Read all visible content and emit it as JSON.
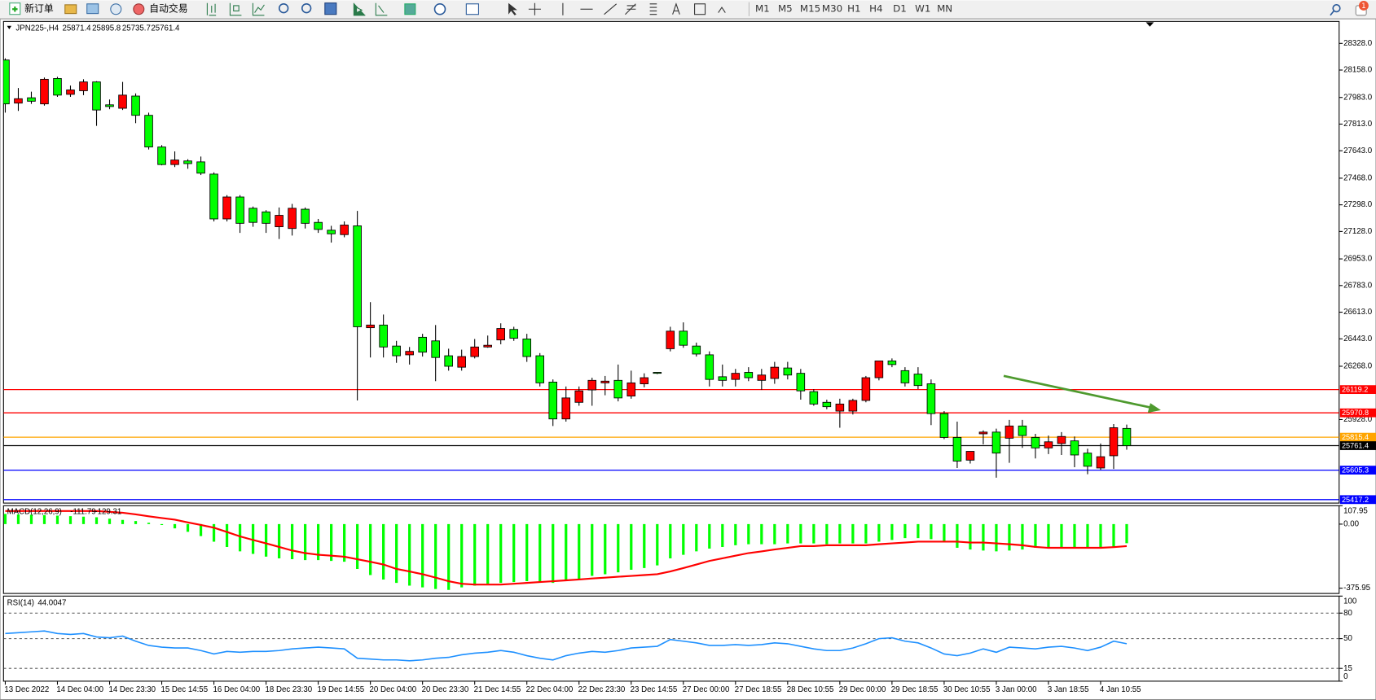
{
  "toolbar": {
    "new_order": "新订单",
    "auto_trading": "自动交易",
    "timeframes": [
      "M1",
      "M5",
      "M15",
      "M30",
      "H1",
      "H4",
      "D1",
      "W1",
      "MN"
    ],
    "notifications": 1
  },
  "chart_data": [
    {
      "type": "candlestick",
      "title": "JPN225-,H4",
      "up_color": "#ff0000",
      "down_color": "#00ff00",
      "categories": [
        "13 Dec 2022",
        null,
        null,
        null,
        "14 Dec 04:00",
        null,
        null,
        null,
        "14 Dec 23:30",
        null,
        null,
        null,
        "15 Dec 14:55",
        null,
        null,
        null,
        "16 Dec 04:00",
        null,
        null,
        null,
        "18 Dec 23:30",
        null,
        null,
        null,
        "19 Dec 14:55",
        null,
        null,
        null,
        "20 Dec 04:00",
        null,
        null,
        null,
        "20 Dec 23:30",
        null,
        null,
        null,
        "21 Dec 14:55",
        null,
        null,
        null,
        "22 Dec 04:00",
        null,
        null,
        null,
        "22 Dec 23:30",
        null,
        null,
        null,
        "23 Dec 14:55",
        null,
        null,
        null,
        "27 Dec 00:00",
        null,
        null,
        null,
        "27 Dec 18:55",
        null,
        null,
        null,
        "28 Dec 10:55",
        null,
        null,
        null,
        "29 Dec 00:00",
        null,
        null,
        null,
        "29 Dec 18:55",
        null,
        null,
        null,
        "30 Dec 10:55",
        null,
        null,
        null,
        "3 Jan 00:00",
        null,
        null,
        null,
        "3 Jan 18:55",
        null,
        null,
        null,
        "4 Jan 10:55",
        null,
        null
      ],
      "open": [
        28222,
        27947,
        27981,
        27942,
        28104,
        28003,
        28026,
        28082,
        27936,
        27914,
        27992,
        27869,
        27667,
        27555,
        27578,
        27572,
        27494,
        27208,
        27348,
        27276,
        27253,
        27158,
        27147,
        27270,
        27186,
        27136,
        27108,
        27164,
        26514,
        26531,
        26397,
        26341,
        26453,
        26430,
        26335,
        26262,
        26330,
        26391,
        26436,
        26503,
        26442,
        26335,
        26167,
        25932,
        26038,
        26117,
        26162,
        26178,
        26078,
        26156,
        26229,
        26380,
        26492,
        26397,
        26341,
        26201,
        26184,
        26229,
        26178,
        26190,
        26257,
        26223,
        26106,
        26038,
        25982,
        25982,
        26050,
        26195,
        26302,
        26240,
        26218,
        26156,
        25966,
        25814,
        25669,
        25837,
        25848,
        25809,
        25887,
        25814,
        25747,
        25775,
        25792,
        25714,
        25619,
        25697,
        25871.4
      ],
      "high": [
        28233,
        28043,
        28020,
        28110,
        28115,
        28059,
        28099,
        28087,
        27970,
        28082,
        28009,
        27886,
        27679,
        27639,
        27589,
        27606,
        27505,
        27360,
        27360,
        27287,
        27264,
        27281,
        27304,
        27281,
        27208,
        27164,
        27192,
        27259,
        26677,
        26598,
        26430,
        26391,
        26475,
        26531,
        26380,
        26374,
        26442,
        26464,
        26542,
        26520,
        26475,
        26352,
        26184,
        26139,
        26139,
        26195,
        26206,
        26279,
        26240,
        26223,
        26229,
        26520,
        26548,
        26419,
        26363,
        26279,
        26251,
        26262,
        26251,
        26296,
        26296,
        26251,
        26122,
        26055,
        26061,
        26061,
        26206,
        26302,
        26318,
        26262,
        26262,
        26184,
        25982,
        25915,
        25725,
        25859,
        25870,
        25926,
        25926,
        25837,
        25826,
        25848,
        25820,
        25742,
        25775,
        25899,
        25895.8
      ],
      "low": [
        27886,
        27897,
        27942,
        27931,
        27987,
        27987,
        27998,
        27802,
        27908,
        27903,
        27819,
        27651,
        27550,
        27539,
        27528,
        27488,
        27192,
        27192,
        27119,
        27158,
        27119,
        27080,
        27102,
        27147,
        27119,
        27057,
        27091,
        26050,
        26324,
        26324,
        26290,
        26279,
        26330,
        26173,
        26240,
        26240,
        26318,
        26386,
        26408,
        26430,
        26296,
        26139,
        25887,
        25915,
        26016,
        26016,
        26083,
        26044,
        26061,
        26134,
        26218,
        26363,
        26386,
        26330,
        26139,
        26139,
        26139,
        26173,
        26117,
        26156,
        26184,
        26055,
        26016,
        25994,
        25876,
        25960,
        26038,
        26178,
        26262,
        26139,
        26122,
        25893,
        25803,
        25619,
        25647,
        25770,
        25557,
        25652,
        25747,
        25680,
        25708,
        25702,
        25624,
        25579,
        25607,
        25613,
        25735.7
      ],
      "close": [
        27942,
        27975,
        27959,
        28099,
        27998,
        28031,
        28082,
        27903,
        27925,
        27998,
        27869,
        27667,
        27555,
        27584,
        27561,
        27500,
        27208,
        27348,
        27180,
        27186,
        27180,
        27231,
        27276,
        27180,
        27141,
        27113,
        27169,
        26520,
        26531,
        26391,
        26335,
        26363,
        26358,
        26324,
        26268,
        26330,
        26391,
        26402,
        26509,
        26447,
        26330,
        26162,
        25932,
        26066,
        26111,
        26178,
        26173,
        26066,
        26162,
        26195,
        26223,
        26492,
        26402,
        26346,
        26184,
        26178,
        26223,
        26195,
        26212,
        26262,
        26212,
        26111,
        26027,
        26010,
        26027,
        26050,
        26195,
        26302,
        26279,
        26162,
        26145,
        25966,
        25814,
        25663,
        25725,
        25848,
        25714,
        25887,
        25826,
        25747,
        25786,
        25820,
        25702,
        25630,
        25691,
        25876,
        25761.4
      ],
      "levels": [
        {
          "value": 26119.2,
          "color": "#ff0000"
        },
        {
          "value": 25970.8,
          "color": "#ff0000"
        },
        {
          "value": 25815.4,
          "color": "#ffa500"
        },
        {
          "value": 25761.4,
          "color": "#000000"
        },
        {
          "value": 25605.3,
          "color": "#0000ff"
        },
        {
          "value": 25417.2,
          "color": "#0000ff"
        }
      ],
      "ylim": [
        25395,
        28468
      ],
      "yticks": [
        {
          "value": 28328,
          "label": "28328.0"
        },
        {
          "value": 28158,
          "label": "28158.0"
        },
        {
          "value": 27983,
          "label": "27983.0"
        },
        {
          "value": 27813,
          "label": "27813.0"
        },
        {
          "value": 27643,
          "label": "27643.0"
        },
        {
          "value": 27468,
          "label": "27468.0"
        },
        {
          "value": 27298,
          "label": "27298.0"
        },
        {
          "value": 27128,
          "label": "27128.0"
        },
        {
          "value": 26953,
          "label": "26953.0"
        },
        {
          "value": 26783,
          "label": "26783.0"
        },
        {
          "value": 26613,
          "label": "26613.0"
        },
        {
          "value": 26443,
          "label": "26443.0"
        },
        {
          "value": 26268,
          "label": "26268.0"
        },
        {
          "value": 25928,
          "label": "25928.0"
        }
      ]
    },
    {
      "type": "macd",
      "title": "MACD(12,26,9)",
      "histogram": {
        "color": "#00ff00",
        "values": [
          60,
          57,
          55,
          53,
          50,
          47,
          44,
          40,
          32,
          25,
          18,
          8,
          -5,
          -25,
          -45,
          -70,
          -103,
          -134,
          -160,
          -175,
          -191,
          -201,
          -206,
          -211,
          -211,
          -216,
          -221,
          -263,
          -299,
          -325,
          -345,
          -361,
          -371,
          -381,
          -386,
          -371,
          -361,
          -350,
          -345,
          -340,
          -335,
          -340,
          -345,
          -335,
          -325,
          -304,
          -294,
          -283,
          -268,
          -258,
          -242,
          -201,
          -180,
          -160,
          -144,
          -134,
          -124,
          -118,
          -118,
          -118,
          -113,
          -113,
          -113,
          -118,
          -113,
          -113,
          -113,
          -103,
          -93,
          -82,
          -82,
          -88,
          -108,
          -139,
          -149,
          -155,
          -160,
          -155,
          -149,
          -139,
          -139,
          -134,
          -144,
          -139,
          -139,
          -139,
          -111.79
        ]
      },
      "signal": {
        "color": "#ff0000",
        "values": [
          77,
          77,
          77,
          77,
          77,
          77,
          77,
          77,
          72,
          67,
          57,
          46,
          36,
          26,
          10,
          -5,
          -21,
          -46,
          -72,
          -93,
          -113,
          -134,
          -155,
          -170,
          -180,
          -185,
          -191,
          -206,
          -221,
          -237,
          -263,
          -278,
          -294,
          -314,
          -335,
          -350,
          -355,
          -355,
          -355,
          -350,
          -345,
          -340,
          -335,
          -330,
          -325,
          -319,
          -314,
          -309,
          -304,
          -299,
          -294,
          -278,
          -258,
          -237,
          -216,
          -201,
          -185,
          -170,
          -160,
          -149,
          -139,
          -129,
          -129,
          -124,
          -124,
          -124,
          -124,
          -118,
          -113,
          -108,
          -103,
          -103,
          -103,
          -103,
          -108,
          -108,
          -113,
          -118,
          -124,
          -134,
          -139,
          -139,
          -139,
          -139,
          -139,
          -135,
          -129.31
        ]
      },
      "ylim": [
        -407,
        108
      ],
      "yticks": [
        107.95,
        {
          "value": 0,
          "label": "0.00"
        },
        -375.95
      ]
    },
    {
      "type": "line",
      "title": "RSI(14)",
      "color": "#1e90ff",
      "values": [
        56,
        57,
        58,
        59,
        56,
        55,
        56,
        52,
        51,
        53,
        47,
        42,
        40,
        39,
        39,
        36,
        32,
        35,
        34,
        35,
        35,
        36,
        38,
        39,
        40,
        39,
        38,
        27,
        26,
        25,
        25,
        24,
        25,
        27,
        28,
        31,
        33,
        34,
        36,
        34,
        30,
        27,
        25,
        30,
        33,
        35,
        34,
        36,
        39,
        40,
        41,
        49,
        47,
        45,
        42,
        42,
        43,
        42,
        43,
        45,
        44,
        41,
        38,
        36,
        36,
        39,
        44,
        50,
        51,
        47,
        45,
        39,
        32,
        30,
        33,
        38,
        34,
        40,
        39,
        38,
        40,
        41,
        39,
        36,
        40,
        47,
        44.0047
      ],
      "ylim": [
        0,
        100
      ],
      "yticks": [
        100,
        80,
        50,
        15,
        0
      ],
      "grid": "dashed"
    }
  ]
}
